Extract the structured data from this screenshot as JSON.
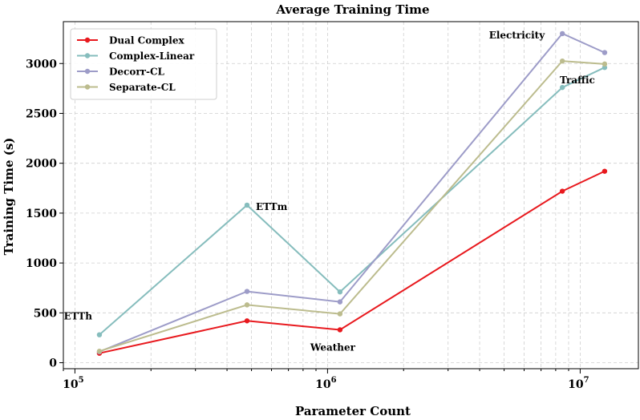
{
  "chart_data": {
    "type": "line",
    "title": "Average Training Time",
    "xlabel": "Parameter Count",
    "ylabel": "Training Time (s)",
    "xscale": "log",
    "xlim": [
      90000,
      17000000
    ],
    "ylim": [
      -60,
      3420
    ],
    "grid": true,
    "legend_position": "upper-left",
    "x_ticks": [
      {
        "value": 100000,
        "base": "10",
        "exp": "5"
      },
      {
        "value": 1000000,
        "base": "10",
        "exp": "6"
      },
      {
        "value": 10000000,
        "base": "10",
        "exp": "7"
      }
    ],
    "y_ticks": [
      0,
      500,
      1000,
      1500,
      2000,
      2500,
      3000
    ],
    "x": [
      125000,
      480000,
      1120000,
      8500000,
      12500000
    ],
    "series": [
      {
        "name": "Dual Complex",
        "color": "#e8191e",
        "values": [
          95,
          420,
          330,
          1720,
          1920
        ]
      },
      {
        "name": "Complex-Linear",
        "color": "#86bdbd",
        "values": [
          280,
          1580,
          710,
          2760,
          2960
        ]
      },
      {
        "name": "Decorr-CL",
        "color": "#9d9cc8",
        "values": [
          110,
          715,
          610,
          3300,
          3110
        ]
      },
      {
        "name": "Separate-CL",
        "color": "#bcbc8e",
        "values": [
          115,
          580,
          490,
          3025,
          2995
        ]
      }
    ],
    "annotations": [
      {
        "text": "ETTh",
        "x": 125000,
        "y": 280
      },
      {
        "text": "ETTm",
        "x": 480000,
        "y": 1580
      },
      {
        "text": "Weather",
        "x": 1120000,
        "y": 330
      },
      {
        "text": "Electricity",
        "x": 8500000,
        "y": 3300
      },
      {
        "text": "Traffic",
        "x": 12500000,
        "y": 2960
      }
    ]
  }
}
